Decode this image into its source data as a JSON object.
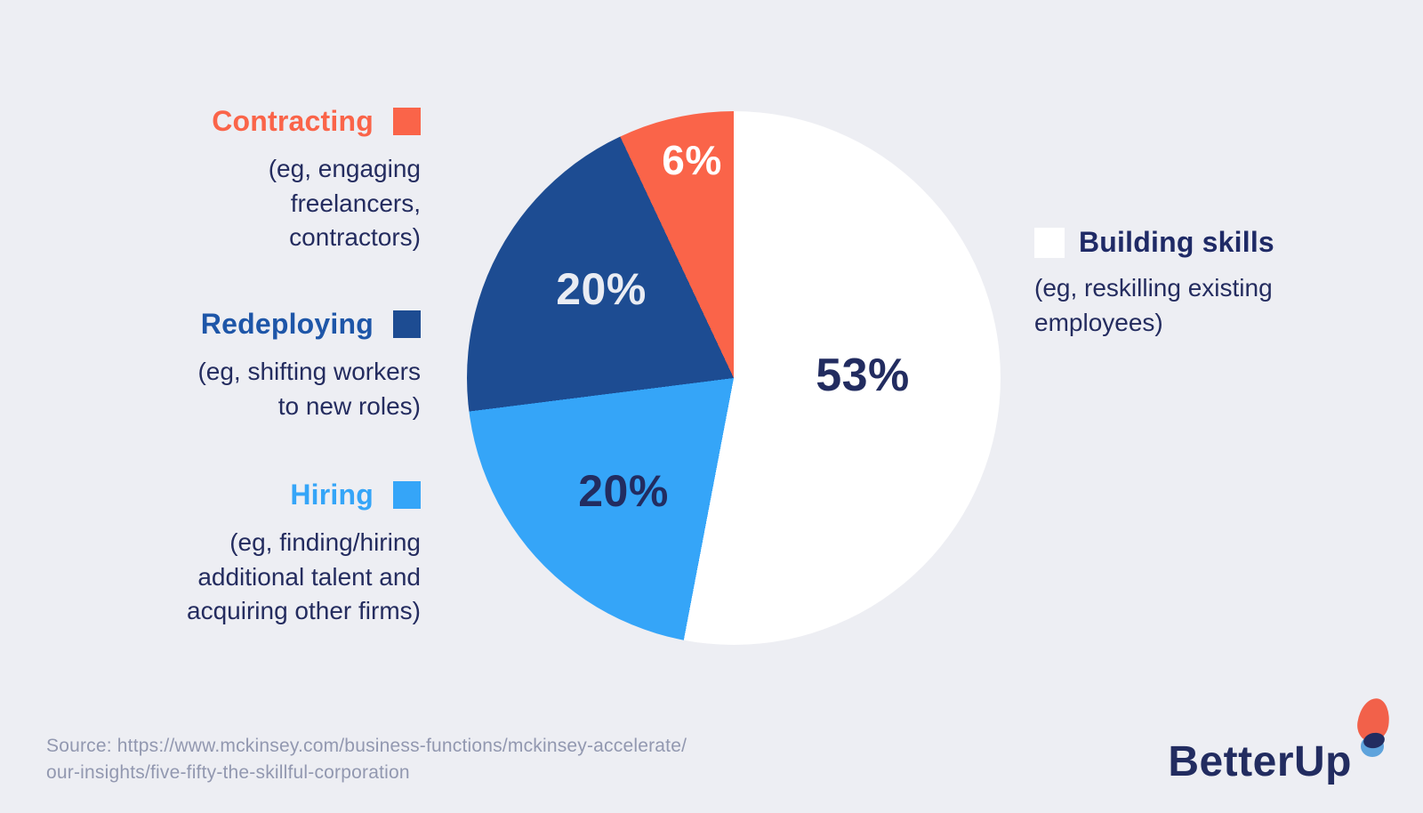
{
  "chart_data": {
    "type": "pie",
    "title": "",
    "start_angle_deg": 0,
    "direction": "clockwise",
    "slices": [
      {
        "label": "Building skills",
        "description": "(eg, reskilling existing employees)",
        "value": 53,
        "display": "53%",
        "color": "#FFFFFF",
        "label_color": "#222C60"
      },
      {
        "label": "Hiring",
        "description": "(eg, finding/hiring additional talent and acquiring other firms)",
        "value": 20,
        "display": "20%",
        "color": "#35A5F8",
        "label_color": "#222C60"
      },
      {
        "label": "Redeploying",
        "description": "(eg, shifting workers to new roles)",
        "value": 20,
        "display": "20%",
        "color": "#1D4C92",
        "label_color": "#FFFFFF"
      },
      {
        "label": "Contracting",
        "description": "(eg, engaging freelancers, contractors)",
        "value": 6,
        "display": "6%",
        "color": "#FA6449",
        "label_color": "#FFFFFF"
      }
    ],
    "legend_position": "left-and-right",
    "background_color": "#EDEEF3"
  },
  "legend": {
    "left": [
      {
        "title": "Contracting",
        "title_color": "#FA6449",
        "swatch_color": "#FA6449",
        "lines": [
          "(eg, engaging",
          "freelancers,",
          "contractors)"
        ]
      },
      {
        "title": "Redeploying",
        "title_color": "#1E56A8",
        "swatch_color": "#1D4C92",
        "lines": [
          "(eg, shifting workers",
          "to new roles)"
        ]
      },
      {
        "title": "Hiring",
        "title_color": "#35A5F8",
        "swatch_color": "#35A5F8",
        "lines": [
          "(eg, finding/hiring",
          "additional talent and",
          "acquiring other firms)"
        ]
      }
    ],
    "right": {
      "title": "Building skills",
      "title_color": "#1F2A66",
      "swatch_color": "#FFFFFF",
      "lines": [
        "(eg, reskilling existing",
        "employees)"
      ]
    }
  },
  "source": {
    "line1": "Source: https://www.mckinsey.com/business-functions/mckinsey-accelerate/",
    "line2": "our-insights/five-fifty-the-skillful-corporation"
  },
  "logo": {
    "text": "BetterUp",
    "mark_orange": "#F2614A",
    "mark_blue": "#5EA3DC",
    "mark_navy": "#222C60"
  }
}
